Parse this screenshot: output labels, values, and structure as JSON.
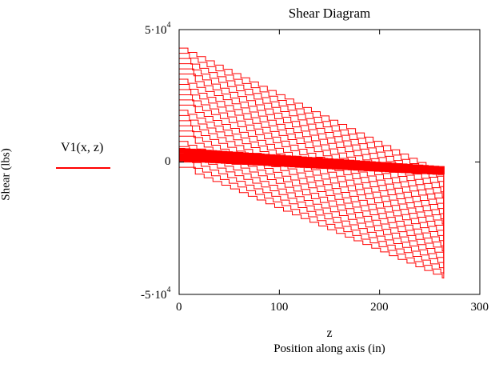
{
  "chart_data": {
    "type": "line",
    "title": "Shear Diagram",
    "xvar": "z",
    "xlabel": "Position along axis (in)",
    "ylabel": "Shear (lbs)",
    "xlim": [
      0,
      300
    ],
    "ylim": [
      -50000,
      50000
    ],
    "xticks": [
      "0",
      "100",
      "200",
      "300"
    ],
    "yticks": [
      {
        "value": 50000,
        "mantissa": "5",
        "exp": "4"
      },
      {
        "value": 0,
        "mantissa": "0",
        "exp": ""
      },
      {
        "value": -50000,
        "mantissa": "-5",
        "exp": "4"
      }
    ],
    "grid": false,
    "legend": {
      "placement": "left",
      "label": "V1(x, z)"
    },
    "series_color": "#ff0000",
    "series": [
      {
        "label": "V1(x, z)",
        "x": [
          0,
          264
        ],
        "envelope_max": [
          43000,
          -5000
        ],
        "envelope_min": [
          -2000,
          -44000
        ],
        "dominant_band": [
          5000,
          -2000
        ]
      }
    ]
  }
}
